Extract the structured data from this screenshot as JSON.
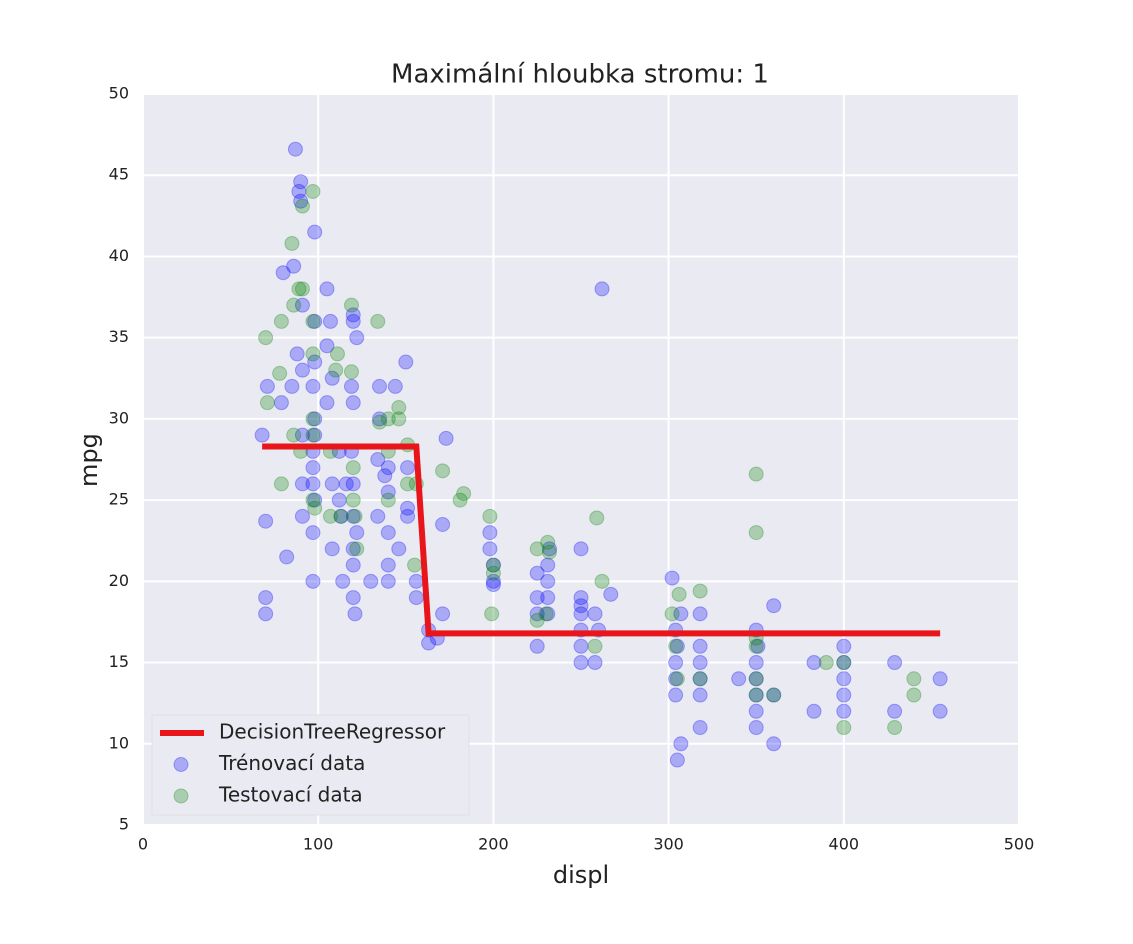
{
  "chart_data": {
    "type": "scatter",
    "title": "Maximální hloubka stromu: 1",
    "x_label": "displ",
    "y_label": "mpg",
    "xlim": [
      0,
      500
    ],
    "ylim": [
      5,
      50
    ],
    "xticks": [
      0,
      100,
      200,
      300,
      400,
      500
    ],
    "yticks": [
      5,
      10,
      15,
      20,
      25,
      30,
      35,
      40,
      45,
      50
    ],
    "grid": true,
    "legend": "lower left",
    "series": [
      {
        "name": "DecisionTreeRegressor",
        "type": "line",
        "color": "#e8161b",
        "x": [
          68,
          156,
          163,
          455
        ],
        "values": [
          28.3,
          28.3,
          16.8,
          16.8
        ]
      },
      {
        "name": "Trénovací data",
        "type": "scatter",
        "color": "#0000ff",
        "x": [
          68,
          70,
          70,
          70,
          71,
          79,
          80,
          82,
          85,
          86,
          87,
          88,
          89,
          90,
          90,
          91,
          91,
          91,
          91,
          91,
          97,
          97,
          97,
          97,
          97,
          97,
          98,
          98,
          98,
          98,
          98,
          98,
          105,
          105,
          105,
          107,
          108,
          108,
          108,
          112,
          112,
          113,
          114,
          116,
          119,
          119,
          120,
          120,
          120,
          120,
          120,
          120,
          120,
          120,
          121,
          122,
          122,
          130,
          134,
          134,
          135,
          135,
          138,
          140,
          140,
          140,
          140,
          140,
          144,
          146,
          150,
          151,
          151,
          151,
          156,
          156,
          163,
          163,
          168,
          171,
          171,
          173,
          198,
          198,
          200,
          200,
          200,
          225,
          225,
          225,
          225,
          231,
          231,
          231,
          231,
          232,
          250,
          250,
          250,
          250,
          250,
          250,
          250,
          258,
          258,
          260,
          262,
          267,
          302,
          304,
          304,
          304,
          304,
          305,
          307,
          305,
          307,
          318,
          318,
          318,
          318,
          318,
          318,
          340,
          350,
          350,
          350,
          350,
          350,
          350,
          351,
          360,
          360,
          360,
          383,
          383,
          400,
          400,
          400,
          400,
          400,
          429,
          429,
          455,
          455
        ],
        "values": [
          29,
          23.7,
          19,
          18,
          32,
          31,
          39,
          21.5,
          32,
          39.4,
          46.6,
          34,
          44,
          44.6,
          43.4,
          37,
          33,
          29,
          26,
          24,
          27,
          26,
          28,
          23,
          20,
          32,
          41.5,
          36,
          33.5,
          30,
          29,
          25,
          38,
          34.5,
          31,
          36,
          32.5,
          26,
          22,
          28,
          25,
          24,
          20,
          26,
          32,
          28,
          36.4,
          36,
          31,
          26,
          24,
          22,
          21,
          19,
          18,
          35,
          23,
          20,
          27.5,
          24,
          32,
          30,
          26.5,
          27,
          25.5,
          23,
          21,
          20,
          32,
          22,
          33.5,
          27,
          24.5,
          24,
          20,
          19,
          17,
          16.2,
          16.5,
          18,
          23.5,
          28.8,
          23,
          22,
          21,
          20,
          19.8,
          19,
          18,
          16,
          20.5,
          21,
          20,
          19,
          18,
          22,
          22,
          19,
          18.5,
          18,
          17,
          16,
          15,
          18,
          15,
          17,
          38,
          19.2,
          20.2,
          17,
          15,
          14,
          13,
          9,
          10,
          16,
          18,
          18,
          16,
          15,
          14,
          13,
          11,
          14,
          17,
          15,
          14,
          13,
          12,
          11,
          16,
          18.5,
          13,
          10,
          15,
          12,
          16,
          15,
          14,
          13,
          12,
          15,
          12,
          14,
          12
        ]
      },
      {
        "name": "Testovací data",
        "type": "scatter",
        "color": "#008000",
        "x": [
          70,
          71,
          78,
          79,
          79,
          85,
          86,
          86,
          89,
          90,
          91,
          91,
          97,
          97,
          97,
          97,
          97,
          97,
          98,
          107,
          107,
          110,
          111,
          113,
          119,
          119,
          120,
          120,
          121,
          122,
          134,
          135,
          140,
          140,
          140,
          146,
          146,
          151,
          151,
          155,
          156,
          171,
          181,
          183,
          198,
          199,
          200,
          200,
          225,
          225,
          230,
          231,
          232,
          258,
          259,
          262,
          302,
          304,
          305,
          306,
          318,
          318,
          350,
          350,
          350,
          350,
          350,
          350,
          360,
          390,
          400,
          400,
          429,
          440,
          440
        ],
        "values": [
          35,
          31,
          32.8,
          36,
          26,
          40.8,
          37,
          29,
          38,
          28,
          43.1,
          38,
          44,
          36,
          34,
          30,
          29,
          25,
          24.5,
          28,
          24,
          33,
          34,
          24,
          37,
          32.9,
          27,
          25,
          24,
          22,
          36,
          29.8,
          30,
          28,
          25,
          30.7,
          30,
          28.4,
          26,
          21,
          26,
          26.8,
          25,
          25.4,
          24,
          18,
          20.5,
          21,
          22,
          17.6,
          18,
          22.4,
          21.8,
          16,
          23.9,
          20,
          18,
          16,
          14,
          19.2,
          19.4,
          14,
          26.6,
          23,
          16.5,
          16,
          14,
          13,
          13,
          15,
          15,
          11,
          11,
          14,
          13
        ]
      }
    ]
  }
}
